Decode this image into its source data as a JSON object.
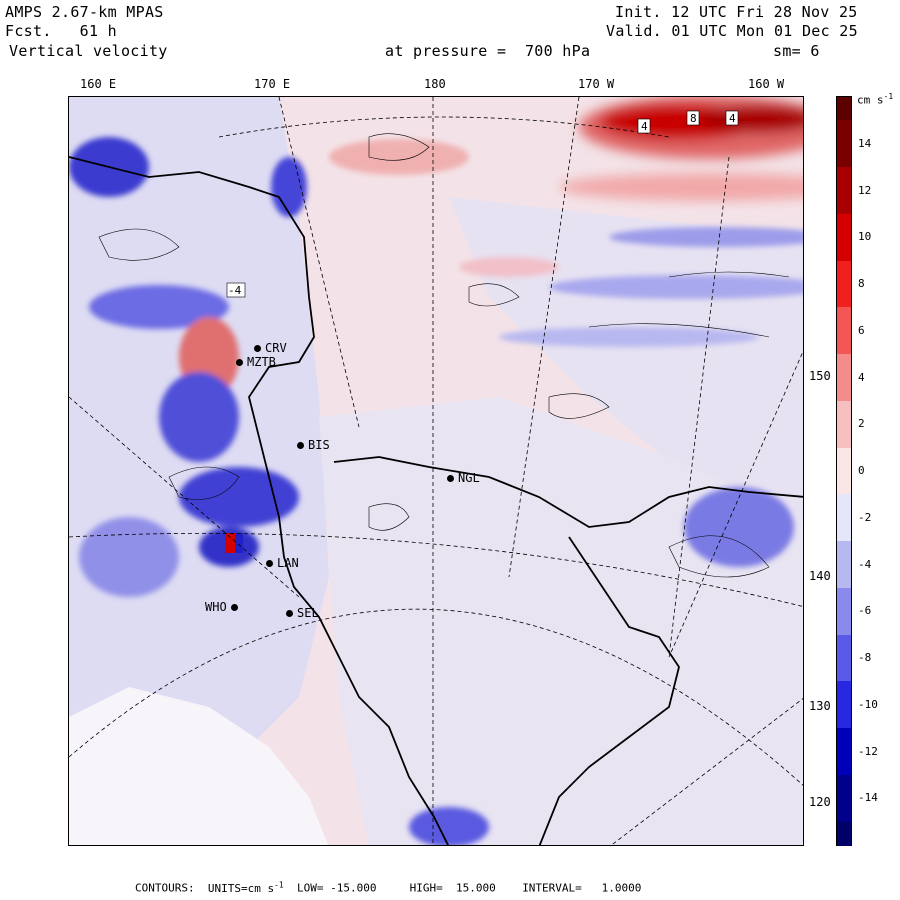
{
  "header": {
    "model": "AMPS 2.67-km MPAS",
    "forecast": "Fcst.   61 h",
    "variable": "Vertical velocity",
    "pressure_level": "at pressure =  700 hPa",
    "init_time": "Init. 12 UTC Fri 28 Nov 25",
    "valid_time": "Valid. 01 UTC Mon 01 Dec 25",
    "smoothing": "sm= 6"
  },
  "longitude_labels": [
    "160 E",
    "170 E",
    "180",
    "170 W",
    "160 W"
  ],
  "latitude_labels": [
    "150 W",
    "140 W",
    "130 W",
    "120 W"
  ],
  "stations": [
    {
      "name": "CRV"
    },
    {
      "name": "MZTB"
    },
    {
      "name": "BIS"
    },
    {
      "name": "NGL"
    },
    {
      "name": "LAN"
    },
    {
      "name": "WHO"
    },
    {
      "name": "SEL"
    }
  ],
  "colorbar": {
    "units": "cm s-1",
    "units_base": "cm s",
    "units_exp": "-1",
    "levels": [
      {
        "label": "14",
        "value": 14,
        "color": "#7a0000"
      },
      {
        "label": "12",
        "value": 12,
        "color": "#a80000"
      },
      {
        "label": "10",
        "value": 10,
        "color": "#d40000"
      },
      {
        "label": "8",
        "value": 8,
        "color": "#f02020"
      },
      {
        "label": "6",
        "value": 6,
        "color": "#f35454"
      },
      {
        "label": "4",
        "value": 4,
        "color": "#f48c8c"
      },
      {
        "label": "2",
        "value": 2,
        "color": "#f6c0c0"
      },
      {
        "label": "0",
        "value": 0,
        "color": "#fbe6e6"
      },
      {
        "label": "-2",
        "value": -2,
        "color": "#e6e6fb"
      },
      {
        "label": "-4",
        "value": -4,
        "color": "#b8b8f0"
      },
      {
        "label": "-6",
        "value": -6,
        "color": "#8a8aec"
      },
      {
        "label": "-8",
        "value": -8,
        "color": "#5a5ae8"
      },
      {
        "label": "-10",
        "value": -10,
        "color": "#2828e0"
      },
      {
        "label": "-12",
        "value": -12,
        "color": "#0000b8"
      },
      {
        "label": "-14",
        "value": -14,
        "color": "#00008a"
      }
    ],
    "top_color": "#5c0000",
    "bottom_color": "#000066"
  },
  "contour_labels": [
    "4",
    "8",
    "4",
    "-4"
  ],
  "footer": {
    "contours_label": "CONTOURS:",
    "units_label": "UNITS=cm s",
    "units_exp": "-1",
    "low_label": "LOW= -15.000",
    "high_label": "HIGH=  15.000",
    "interval_label": "INTERVAL=   1.0000"
  }
}
